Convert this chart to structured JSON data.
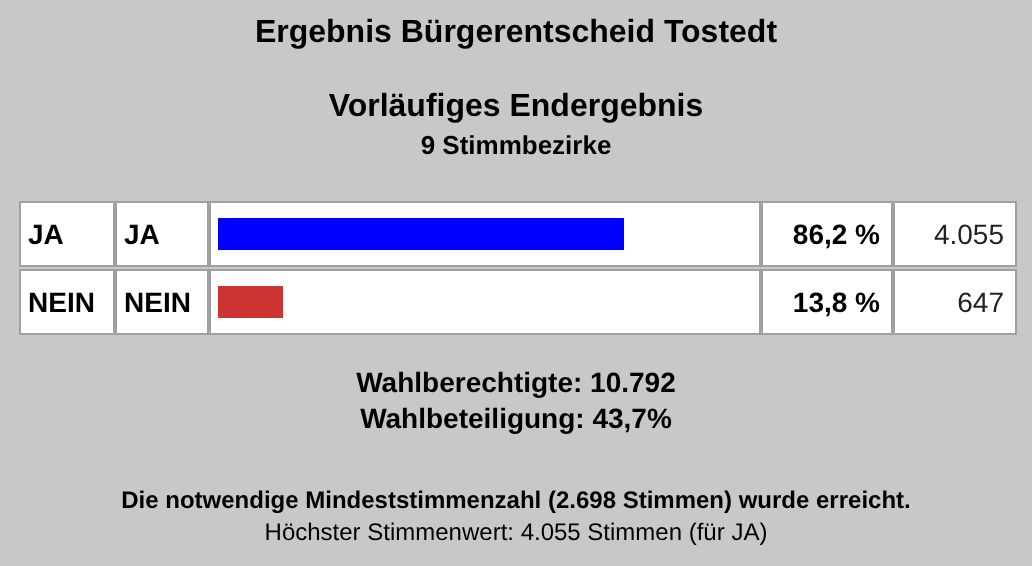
{
  "chart_data": {
    "type": "bar",
    "orientation": "horizontal",
    "title": "Ergebnis Bürgerentscheid Tostedt",
    "subtitle": "Vorläufiges Endergebnis\n9 Stimmbezirke",
    "categories": [
      "JA",
      "NEIN"
    ],
    "values": [
      86.2,
      13.8
    ],
    "colors": [
      "#0000ff",
      "#cc3333"
    ],
    "value_labels": [
      "86,2 %",
      "13,8 %"
    ],
    "annotations": [
      "JA",
      "4.055",
      "NEIN",
      "647",
      "Wahlberechtigte: 10.792",
      "Wahlbeteiligung: 43,7%",
      "Die notwendige Mindeststimmenzahl (2.698 Stimmen) wurde erreicht.",
      "Höchster Stimmenwert: 4.055 Stimmen (für JA)"
    ]
  }
}
